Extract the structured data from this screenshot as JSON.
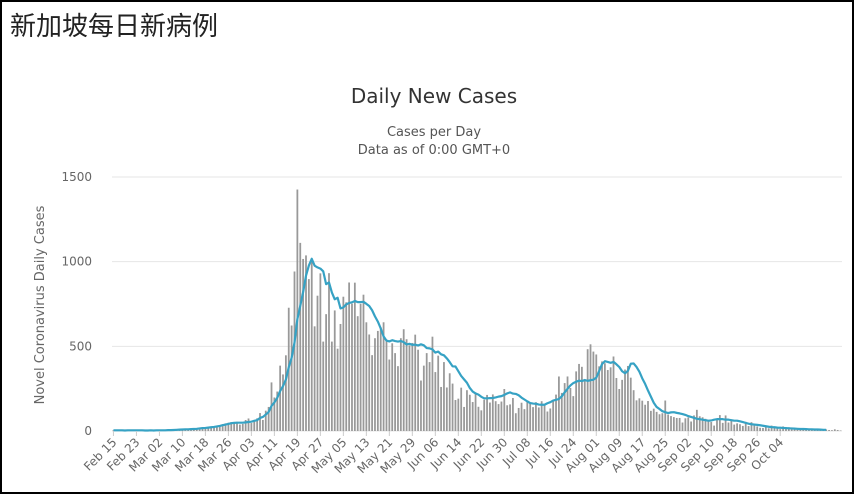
{
  "page": {
    "title": "新加坡每日新病例"
  },
  "chart_data": {
    "type": "bar",
    "title": "Daily New Cases",
    "subtitle_lines": [
      "Cases per Day",
      "Data as of 0:00 GMT+0"
    ],
    "ylabel": "Novel Coronavirus Daily Cases",
    "xlabel": "",
    "ylim": [
      0,
      1500
    ],
    "yticks": [
      0,
      500,
      1000,
      1500
    ],
    "grid": true,
    "x_tick_labels": [
      "Feb 15",
      "Feb 23",
      "Mar 02",
      "Mar 10",
      "Mar 18",
      "Mar 26",
      "Apr 03",
      "Apr 11",
      "Apr 19",
      "Apr 27",
      "May 05",
      "May 13",
      "May 21",
      "May 29",
      "Jun 06",
      "Jun 14",
      "Jun 22",
      "Jun 30",
      "Jul 08",
      "Jul 16",
      "Jul 24",
      "Aug 01",
      "Aug 09",
      "Aug 17",
      "Aug 25",
      "Sep 02",
      "Sep 10",
      "Sep 18",
      "Sep 26",
      "Oct 04"
    ],
    "start_label": "Feb 15",
    "colors": {
      "bars": "#999999",
      "line": "#36a2c4",
      "grid": "#e6e6e6",
      "frame": "#000000"
    },
    "series": [
      {
        "type": "bar",
        "values": [
          4,
          5,
          3,
          4,
          2,
          6,
          3,
          3,
          4,
          5,
          3,
          2,
          3,
          4,
          2,
          5,
          3,
          6,
          4,
          5,
          6,
          8,
          9,
          11,
          10,
          12,
          8,
          14,
          13,
          15,
          18,
          20,
          17,
          22,
          25,
          28,
          30,
          35,
          40,
          45,
          49,
          52,
          47,
          54,
          38,
          42,
          65,
          74,
          47,
          65,
          75,
          106,
          65,
          120,
          142,
          287,
          198,
          233,
          386,
          334,
          447,
          728,
          623,
          942,
          1426,
          1111,
          1016,
          1037,
          897,
          1016,
          618,
          799,
          931,
          528,
          690,
          932,
          528,
          712,
          486,
          632,
          793,
          760,
          877,
          752,
          876,
          678,
          751,
          805,
          642,
          570,
          448,
          548,
          591,
          613,
          642,
          533,
          422,
          518,
          460,
          383,
          548,
          601,
          542,
          506,
          520,
          569,
          480,
          298,
          386,
          460,
          407,
          557,
          348,
          445,
          260,
          407,
          257,
          341,
          280,
          183,
          191,
          256,
          142,
          241,
          214,
          171,
          219,
          143,
          122,
          185,
          213,
          168,
          216,
          176,
          159,
          174,
          248,
          152,
          157,
          195,
          105,
          136,
          167,
          129,
          180,
          163,
          141,
          170,
          139,
          176,
          154,
          115,
          133,
          175,
          215,
          322,
          225,
          283,
          322,
          254,
          206,
          352,
          396,
          379,
          298,
          483,
          512,
          469,
          452,
          382,
          411,
          400,
          360,
          376,
          440,
          313,
          248,
          302,
          363,
          384,
          315,
          241,
          181,
          193,
          179,
          155,
          177,
          119,
          132,
          113,
          99,
          105,
          180,
          97,
          88,
          82,
          77,
          77,
          50,
          75,
          80,
          56,
          92,
          125,
          87,
          81,
          72,
          56,
          53,
          32,
          65,
          94,
          48,
          92,
          50,
          67,
          38,
          45,
          40,
          30,
          54,
          29,
          52,
          35,
          27,
          19,
          18,
          24,
          16,
          32,
          23,
          22,
          11,
          27,
          14,
          22,
          11,
          16,
          10,
          10,
          8,
          13,
          12,
          9,
          10,
          7,
          8,
          12,
          9,
          6,
          5,
          10,
          6,
          3
        ]
      },
      {
        "type": "line",
        "name": "",
        "values": [
          4,
          4,
          4,
          4,
          3,
          4,
          4,
          4,
          4,
          4,
          4,
          3,
          3,
          4,
          3,
          4,
          4,
          4,
          4,
          5,
          5,
          6,
          7,
          8,
          9,
          10,
          10,
          11,
          12,
          13,
          15,
          17,
          18,
          20,
          22,
          24,
          27,
          30,
          34,
          38,
          42,
          46,
          48,
          49,
          49,
          49,
          51,
          53,
          55,
          60,
          64,
          77,
          83,
          97,
          112,
          148,
          169,
          196,
          236,
          265,
          304,
          376,
          432,
          522,
          661,
          739,
          820,
          917,
          977,
          1017,
          976,
          966,
          959,
          943,
          867,
          877,
          818,
          778,
          787,
          724,
          730,
          748,
          756,
          760,
          768,
          761,
          761,
          763,
          751,
          738,
          713,
          677,
          646,
          606,
          559,
          534,
          529,
          536,
          531,
          528,
          531,
          525,
          511,
          515,
          509,
          510,
          505,
          512,
          506,
          490,
          488,
          482,
          463,
          469,
          453,
          447,
          429,
          407,
          382,
          381,
          353,
          325,
          305,
          285,
          254,
          233,
          222,
          215,
          202,
          193,
          193,
          194,
          195,
          198,
          203,
          206,
          213,
          222,
          228,
          221,
          219,
          211,
          197,
          186,
          175,
          165,
          162,
          161,
          156,
          155,
          155,
          164,
          170,
          180,
          184,
          189,
          205,
          228,
          249,
          269,
          283,
          291,
          297,
          295,
          301,
          296,
          300,
          303,
          315,
          354,
          395,
          412,
          408,
          403,
          408,
          394,
          378,
          353,
          341,
          355,
          397,
          399,
          378,
          350,
          311,
          278,
          239,
          203,
          167,
          142,
          130,
          117,
          111,
          106,
          110,
          111,
          107,
          104,
          100,
          95,
          88,
          83,
          78,
          72,
          70,
          67,
          64,
          61,
          62,
          67,
          70,
          70,
          70,
          67,
          67,
          64,
          61,
          61,
          57,
          53,
          48,
          43,
          40,
          38,
          36,
          34,
          31,
          28,
          25,
          23,
          22,
          20,
          19,
          18,
          17,
          16,
          15,
          14,
          13,
          12,
          12,
          11,
          10,
          10,
          9,
          9,
          8,
          7,
          7
        ]
      }
    ]
  }
}
